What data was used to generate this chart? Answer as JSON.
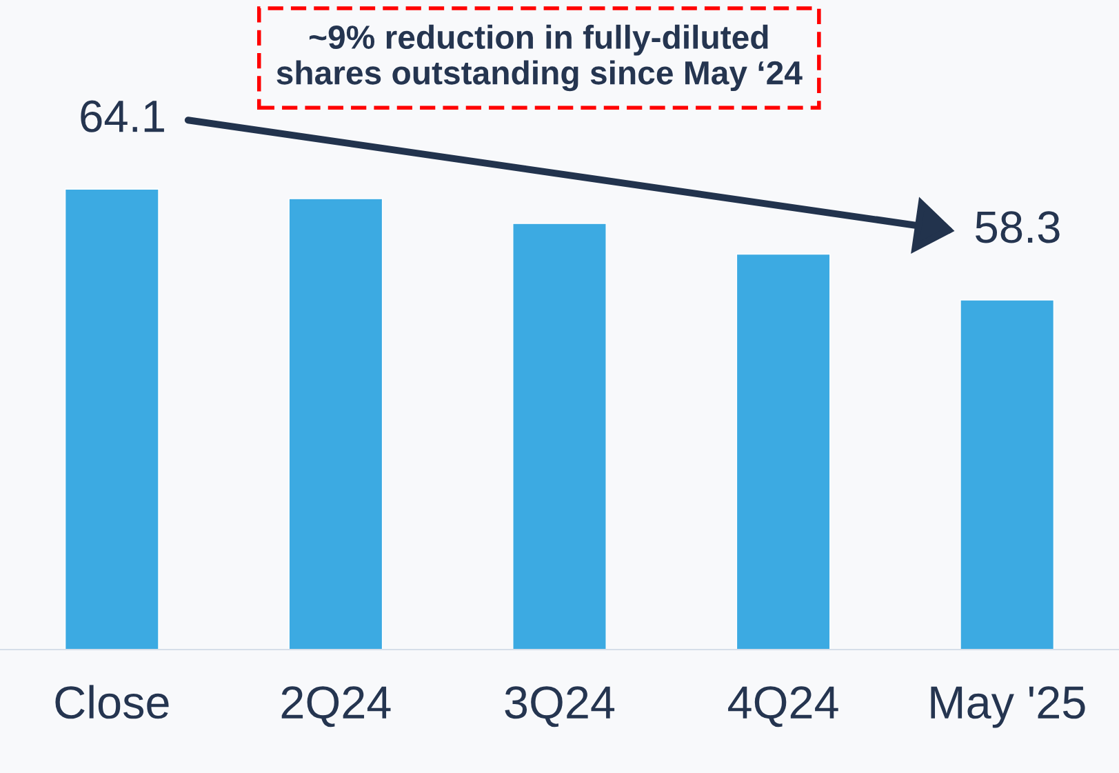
{
  "chart_data": {
    "type": "bar",
    "categories": [
      "Close",
      "2Q24",
      "3Q24",
      "4Q24",
      "May '25"
    ],
    "values": [
      64.1,
      63.6,
      62.3,
      60.7,
      58.3
    ],
    "value_labels": [
      "64.1",
      null,
      null,
      null,
      "58.3"
    ],
    "color": "#3caae2",
    "ylim": [
      40,
      74
    ],
    "tick_labels": "x",
    "annotations": [
      "~9% reduction in fully-diluted\nshares outstanding since May ‘24"
    ]
  }
}
